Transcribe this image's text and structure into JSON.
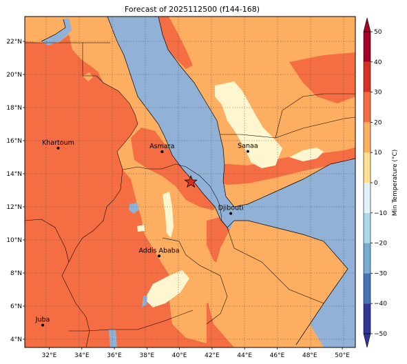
{
  "title": "Forecast of 2025112500 (f144-168)",
  "map": {
    "lat_labels": [
      "22°N",
      "20°N",
      "18°N",
      "16°N",
      "14°N",
      "12°N",
      "10°N",
      "8°N",
      "6°N",
      "4°N"
    ],
    "lon_labels": [
      "32°E",
      "34°E",
      "36°E",
      "38°E",
      "40°E",
      "42°E",
      "44°E",
      "46°E",
      "48°E",
      "50°E"
    ],
    "lat_values": [
      22,
      20,
      18,
      16,
      14,
      12,
      10,
      8,
      6,
      4
    ],
    "lon_values": [
      32,
      34,
      36,
      38,
      40,
      42,
      44,
      46,
      48,
      50
    ],
    "extent": {
      "lon_min": 30.5,
      "lon_max": 50.8,
      "lat_min": 3.5,
      "lat_max": 23.5
    },
    "cities": [
      {
        "name": "Khartoum",
        "lon": 32.55,
        "lat": 15.55
      },
      {
        "name": "Asmara",
        "lon": 38.93,
        "lat": 15.33
      },
      {
        "name": "Sanaa",
        "lon": 44.2,
        "lat": 15.35
      },
      {
        "name": "Djibouti",
        "lon": 43.15,
        "lat": 11.6
      },
      {
        "name": "Addis Ababa",
        "lon": 38.75,
        "lat": 9.03
      },
      {
        "name": "Juba",
        "lon": 31.6,
        "lat": 4.85
      }
    ],
    "marker": {
      "type": "star",
      "lon": 40.7,
      "lat": 13.5,
      "color": "#d7301f"
    },
    "gridlines": true
  },
  "colorbar": {
    "label": "Min Temperature (°C)",
    "ticks": [
      "50",
      "40",
      "30",
      "20",
      "10",
      "0",
      "−10",
      "−20",
      "−30",
      "−40",
      "−50"
    ],
    "colors": [
      "#313695",
      "#4575b4",
      "#74add1",
      "#abd9e9",
      "#e0f3f8",
      "#fee090",
      "#fdae61",
      "#f46d43",
      "#d73027",
      "#a50026"
    ],
    "vmin": -50,
    "vmax": 50
  },
  "colors": {
    "sea": "#91b2d6",
    "band_10_20": "#fdae61",
    "band_20_30": "#f46d43",
    "band_0_10": "#fef6cf"
  }
}
